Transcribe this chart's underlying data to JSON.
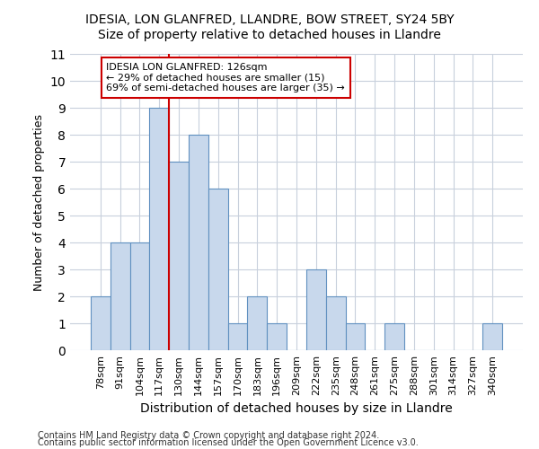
{
  "title1": "IDESIA, LON GLANFRED, LLANDRE, BOW STREET, SY24 5BY",
  "title2": "Size of property relative to detached houses in Llandre",
  "xlabel": "Distribution of detached houses by size in Llandre",
  "ylabel": "Number of detached properties",
  "footer1": "Contains HM Land Registry data © Crown copyright and database right 2024.",
  "footer2": "Contains public sector information licensed under the Open Government Licence v3.0.",
  "categories": [
    "78sqm",
    "91sqm",
    "104sqm",
    "117sqm",
    "130sqm",
    "144sqm",
    "157sqm",
    "170sqm",
    "183sqm",
    "196sqm",
    "209sqm",
    "222sqm",
    "235sqm",
    "248sqm",
    "261sqm",
    "275sqm",
    "288sqm",
    "301sqm",
    "314sqm",
    "327sqm",
    "340sqm"
  ],
  "values": [
    2,
    4,
    4,
    9,
    7,
    8,
    6,
    1,
    2,
    1,
    0,
    3,
    2,
    1,
    0,
    1,
    0,
    0,
    0,
    0,
    1
  ],
  "bar_color": "#c8d8ec",
  "bar_edge_color": "#6090c0",
  "grid_color": "#c8d0dc",
  "annotation_text_line1": "IDESIA LON GLANFRED: 126sqm",
  "annotation_text_line2": "← 29% of detached houses are smaller (15)",
  "annotation_text_line3": "69% of semi-detached houses are larger (35) →",
  "annotation_box_facecolor": "#ffffff",
  "annotation_box_edgecolor": "#cc0000",
  "red_line_color": "#cc0000",
  "ylim": [
    0,
    11
  ],
  "yticks": [
    0,
    1,
    2,
    3,
    4,
    5,
    6,
    7,
    8,
    9,
    10,
    11
  ],
  "background_color": "#ffffff",
  "title1_fontsize": 10,
  "title2_fontsize": 10,
  "xlabel_fontsize": 10,
  "ylabel_fontsize": 9,
  "tick_fontsize": 8,
  "footer_fontsize": 7
}
